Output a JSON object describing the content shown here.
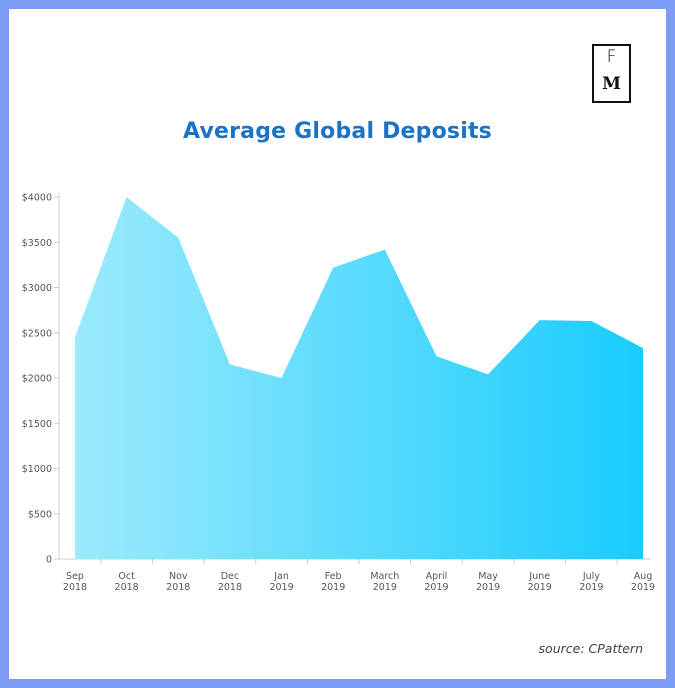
{
  "logo": {
    "top_letter": "F",
    "bottom_letter": "M"
  },
  "source": "source: CPattern",
  "chart_data": {
    "type": "area",
    "title": "Average Global Deposits",
    "xlabel": "",
    "ylabel": "",
    "categories": [
      [
        "Sep",
        "2018"
      ],
      [
        "Oct",
        "2018"
      ],
      [
        "Nov",
        "2018"
      ],
      [
        "Dec",
        "2018"
      ],
      [
        "Jan",
        "2019"
      ],
      [
        "Feb",
        "2019"
      ],
      [
        "March",
        "2019"
      ],
      [
        "April",
        "2019"
      ],
      [
        "May",
        "2019"
      ],
      [
        "June",
        "2019"
      ],
      [
        "July",
        "2019"
      ],
      [
        "Aug",
        "2019"
      ]
    ],
    "values": [
      2450,
      4000,
      3550,
      2150,
      2000,
      3220,
      3420,
      2240,
      2040,
      2640,
      2630,
      2330
    ],
    "ylim": [
      0,
      4000
    ],
    "yticks": [
      0,
      500,
      1000,
      1500,
      2000,
      2500,
      3000,
      3500,
      4000
    ],
    "ytick_labels": [
      "0",
      "$500",
      "$1000",
      "$1500",
      "$2000",
      "$2500",
      "$3000",
      "$3500",
      "$4000"
    ],
    "grid": false,
    "legend": "none",
    "colors": {
      "gradient_start": "#9ceafd",
      "gradient_end": "#18ccfd",
      "axis": "#cccccc",
      "tick_label": "#555555"
    }
  }
}
